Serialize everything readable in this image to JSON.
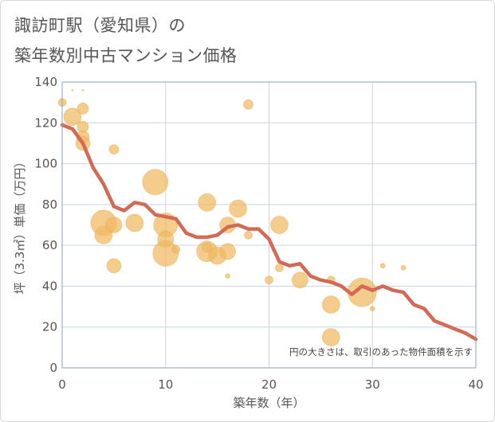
{
  "title_line1": "諏訪町駅（愛知県）の",
  "title_line2": "築年数別中古マンション価格",
  "chart_data": {
    "type": "scatter",
    "xlabel": "築年数（年）",
    "ylabel": "坪（3.3㎡）単価（万円）",
    "xlim": [
      0,
      40
    ],
    "ylim": [
      0,
      140
    ],
    "x_ticks": [
      "0",
      "10",
      "20",
      "30",
      "40"
    ],
    "y_ticks": [
      "0",
      "20",
      "40",
      "60",
      "80",
      "100",
      "120",
      "140"
    ],
    "grid": true,
    "note": "円の大きさは、取引のあった物件面積を示す",
    "bubble_color": "#f0b860",
    "line_color": "#d46a55",
    "bubbles": [
      {
        "x": 0,
        "y": 130,
        "s": 5
      },
      {
        "x": 1,
        "y": 123,
        "s": 11
      },
      {
        "x": 1,
        "y": 136,
        "s": 1
      },
      {
        "x": 2,
        "y": 127,
        "s": 7
      },
      {
        "x": 2,
        "y": 118,
        "s": 7
      },
      {
        "x": 2,
        "y": 113,
        "s": 8
      },
      {
        "x": 2,
        "y": 110,
        "s": 9
      },
      {
        "x": 2,
        "y": 136,
        "s": 1
      },
      {
        "x": 4,
        "y": 71,
        "s": 16
      },
      {
        "x": 4,
        "y": 65,
        "s": 11
      },
      {
        "x": 5,
        "y": 107,
        "s": 6
      },
      {
        "x": 5,
        "y": 70,
        "s": 10
      },
      {
        "x": 5,
        "y": 50,
        "s": 9
      },
      {
        "x": 7,
        "y": 71,
        "s": 11
      },
      {
        "x": 9,
        "y": 91,
        "s": 16
      },
      {
        "x": 10,
        "y": 70,
        "s": 15
      },
      {
        "x": 10,
        "y": 63,
        "s": 10
      },
      {
        "x": 10,
        "y": 56,
        "s": 16
      },
      {
        "x": 11,
        "y": 58,
        "s": 5
      },
      {
        "x": 14,
        "y": 81,
        "s": 11
      },
      {
        "x": 14,
        "y": 57,
        "s": 13
      },
      {
        "x": 14,
        "y": 59,
        "s": 6
      },
      {
        "x": 15,
        "y": 55,
        "s": 11
      },
      {
        "x": 16,
        "y": 70,
        "s": 10
      },
      {
        "x": 16,
        "y": 57,
        "s": 10
      },
      {
        "x": 16,
        "y": 45,
        "s": 3
      },
      {
        "x": 17,
        "y": 78,
        "s": 11
      },
      {
        "x": 18,
        "y": 129,
        "s": 6
      },
      {
        "x": 18,
        "y": 65,
        "s": 5
      },
      {
        "x": 20,
        "y": 43,
        "s": 5
      },
      {
        "x": 21,
        "y": 70,
        "s": 11
      },
      {
        "x": 21,
        "y": 49,
        "s": 5
      },
      {
        "x": 23,
        "y": 43,
        "s": 10
      },
      {
        "x": 26,
        "y": 43,
        "s": 5
      },
      {
        "x": 26,
        "y": 31,
        "s": 11
      },
      {
        "x": 26,
        "y": 15,
        "s": 11
      },
      {
        "x": 29,
        "y": 37,
        "s": 18
      },
      {
        "x": 30,
        "y": 29,
        "s": 3
      },
      {
        "x": 31,
        "y": 50,
        "s": 3
      },
      {
        "x": 33,
        "y": 49,
        "s": 3
      }
    ],
    "line": {
      "x": [
        0,
        1,
        2,
        3,
        4,
        5,
        6,
        7,
        8,
        9,
        10,
        11,
        12,
        13,
        14,
        15,
        16,
        17,
        18,
        19,
        20,
        21,
        22,
        23,
        24,
        25,
        26,
        27,
        28,
        29,
        30,
        31,
        32,
        33,
        34,
        35,
        36,
        37,
        38,
        39,
        40
      ],
      "y": [
        119,
        117,
        110,
        98,
        90,
        79,
        77,
        81,
        80,
        75,
        74,
        73,
        66,
        64,
        64,
        65,
        69,
        70,
        68,
        68,
        63,
        52,
        50,
        51,
        45,
        43,
        42,
        40,
        36,
        40,
        38,
        40,
        38,
        37,
        31,
        29,
        23,
        21,
        19,
        17,
        14
      ]
    }
  }
}
